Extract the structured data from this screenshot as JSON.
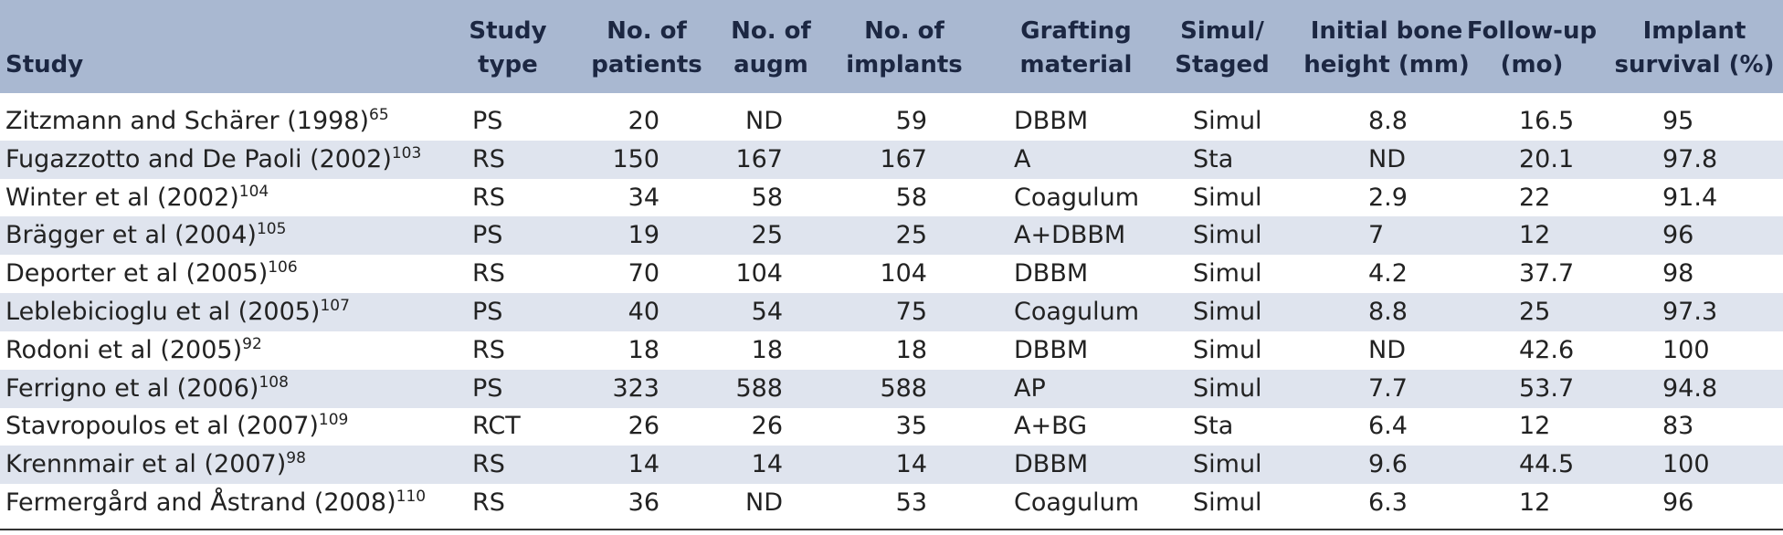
{
  "table": {
    "header": [
      [
        "Study"
      ],
      [
        "Study",
        "type"
      ],
      [
        "No. of",
        "patients"
      ],
      [
        "No. of",
        "augm"
      ],
      [
        "No. of",
        "implants"
      ],
      [
        "Grafting",
        "material"
      ],
      [
        "Simul/",
        "Staged"
      ],
      [
        "Initial bone",
        "height (mm)"
      ],
      [
        "Follow-up",
        "(mo)"
      ],
      [
        "Implant",
        "survival (%)"
      ]
    ],
    "rows": [
      {
        "study": "Zitzmann and Schärer (1998)",
        "ref": "65",
        "cells": [
          "PS",
          "20",
          "ND",
          "59",
          "DBBM",
          "Simul",
          "8.8",
          "16.5",
          "95"
        ]
      },
      {
        "study": "Fugazzotto and De Paoli (2002)",
        "ref": "103",
        "cells": [
          "RS",
          "150",
          "167",
          "167",
          "A",
          "Sta",
          "ND",
          "20.1",
          "97.8"
        ]
      },
      {
        "study": "Winter et al (2002)",
        "ref": "104",
        "cells": [
          "RS",
          "34",
          "58",
          "58",
          "Coagulum",
          "Simul",
          "2.9",
          "22",
          "91.4"
        ]
      },
      {
        "study": "Brägger et al (2004)",
        "ref": "105",
        "cells": [
          "PS",
          "19",
          "25",
          "25",
          "A+DBBM",
          "Simul",
          "7",
          "12",
          "96"
        ]
      },
      {
        "study": "Deporter et al (2005)",
        "ref": "106",
        "cells": [
          "RS",
          "70",
          "104",
          "104",
          "DBBM",
          "Simul",
          "4.2",
          "37.7",
          "98"
        ]
      },
      {
        "study": "Leblebicioglu et al (2005)",
        "ref": "107",
        "cells": [
          "PS",
          "40",
          "54",
          "75",
          "Coagulum",
          "Simul",
          "8.8",
          "25",
          "97.3"
        ]
      },
      {
        "study": "Rodoni et al (2005)",
        "ref": "92",
        "cells": [
          "RS",
          "18",
          "18",
          "18",
          "DBBM",
          "Simul",
          "ND",
          "42.6",
          "100"
        ]
      },
      {
        "study": "Ferrigno et al (2006)",
        "ref": "108",
        "cells": [
          "PS",
          "323",
          "588",
          "588",
          "AP",
          "Simul",
          "7.7",
          "53.7",
          "94.8"
        ]
      },
      {
        "study": "Stavropoulos et al (2007)",
        "ref": "109",
        "cells": [
          "RCT",
          "26",
          "26",
          "35",
          "A+BG",
          "Sta",
          "6.4",
          "12",
          "83"
        ]
      },
      {
        "study": "Krennmair et al (2007)",
        "ref": "98",
        "cells": [
          "RS",
          "14",
          "14",
          "14",
          "DBBM",
          "Simul",
          "9.6",
          "44.5",
          "100"
        ]
      },
      {
        "study": "Fermergård and Åstrand (2008)",
        "ref": "110",
        "cells": [
          "RS",
          "36",
          "ND",
          "53",
          "Coagulum",
          "Simul",
          "6.3",
          "12",
          "96"
        ]
      }
    ]
  }
}
